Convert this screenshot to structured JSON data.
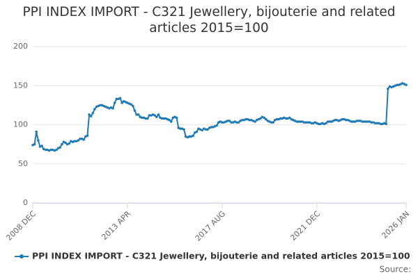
{
  "chart_data": {
    "type": "line",
    "title": "PPI INDEX IMPORT - C321 Jewellery, bijouterie and related articles 2015=100",
    "categories": [
      "2008 DEC",
      null,
      null,
      null,
      null,
      null,
      null,
      null,
      null,
      null,
      null,
      null,
      null,
      null,
      null,
      null,
      null,
      null,
      null,
      null,
      null,
      null,
      null,
      null,
      null,
      null,
      null,
      null,
      null,
      null,
      null,
      null,
      null,
      null,
      null,
      null,
      null,
      null,
      null,
      null,
      null,
      null,
      null,
      null,
      null,
      null,
      null,
      null,
      null,
      null,
      null,
      null,
      "2013 APR",
      null,
      null,
      null,
      null,
      null,
      null,
      null,
      null,
      null,
      null,
      null,
      null,
      null,
      null,
      null,
      null,
      null,
      null,
      null,
      null,
      null,
      null,
      null,
      null,
      null,
      null,
      null,
      null,
      null,
      null,
      null,
      null,
      null,
      null,
      null,
      null,
      null,
      null,
      null,
      null,
      null,
      null,
      null,
      null,
      null,
      null,
      null,
      null,
      null,
      null,
      null,
      "2017 AUG",
      null,
      null,
      null,
      null,
      null,
      null,
      null,
      null,
      null,
      null,
      null,
      null,
      null,
      null,
      null,
      null,
      null,
      null,
      null,
      null,
      null,
      null,
      null,
      null,
      null,
      null,
      null,
      null,
      null,
      null,
      null,
      null,
      null,
      null,
      null,
      null,
      null,
      null,
      null,
      null,
      null,
      null,
      null,
      null,
      null,
      null,
      null,
      null,
      null,
      null,
      null,
      "2021 DEC",
      null,
      null,
      null,
      null,
      null,
      null,
      null,
      null,
      null,
      null,
      null,
      null,
      null,
      null,
      null,
      null,
      null,
      null,
      null,
      null,
      null,
      null,
      null,
      null,
      null,
      null,
      null,
      null,
      null,
      null,
      null,
      null,
      null,
      null,
      null,
      null,
      null,
      null,
      null,
      null,
      null,
      null,
      null,
      null,
      null,
      null,
      null,
      null,
      "2026 JAN"
    ],
    "series": [
      {
        "name": "PPI INDEX IMPORT - C321 Jewellery, bijouterie and related articles 2015=100",
        "color": "#1f7ab5",
        "values": [
          74,
          75,
          91,
          80,
          72,
          73,
          69,
          68,
          68,
          67,
          68,
          68,
          67,
          68,
          70,
          71,
          75,
          78,
          77,
          75,
          76,
          79,
          78,
          79,
          79,
          80,
          82,
          82,
          81,
          85,
          86,
          113,
          111,
          115,
          120,
          123,
          124,
          125,
          125,
          124,
          123,
          122,
          121,
          122,
          121,
          128,
          133,
          133,
          134,
          128,
          130,
          129,
          128,
          127,
          126,
          124,
          118,
          113,
          113,
          110,
          109,
          109,
          108,
          108,
          112,
          112,
          113,
          112,
          110,
          113,
          109,
          108,
          108,
          108,
          107,
          106,
          104,
          109,
          110,
          109,
          96,
          95,
          95,
          94,
          85,
          84,
          85,
          85,
          86,
          90,
          91,
          95,
          94,
          93,
          95,
          94,
          94,
          96,
          97,
          97,
          98,
          99,
          103,
          104,
          103,
          103,
          104,
          105,
          105,
          103,
          103,
          104,
          103,
          103,
          105,
          106,
          106,
          107,
          107,
          106,
          106,
          105,
          104,
          106,
          107,
          108,
          110,
          109,
          107,
          105,
          104,
          103,
          103,
          106,
          107,
          107,
          108,
          108,
          109,
          108,
          108,
          109,
          107,
          106,
          105,
          104,
          104,
          104,
          104,
          103,
          103,
          103,
          103,
          102,
          102,
          103,
          102,
          101,
          101,
          102,
          101,
          102,
          104,
          104,
          104,
          105,
          106,
          106,
          105,
          106,
          107,
          107,
          106,
          106,
          105,
          104,
          104,
          104,
          105,
          105,
          105,
          104,
          104,
          104,
          104,
          104,
          103,
          103,
          102,
          102,
          102,
          101,
          101,
          102,
          101,
          146,
          149,
          148,
          149,
          150,
          151,
          151,
          152,
          153,
          152,
          151
        ]
      }
    ],
    "ylim": [
      0,
      200
    ],
    "yticks": [
      0,
      50,
      100,
      150,
      200
    ],
    "grid": true,
    "source": "Source:"
  }
}
